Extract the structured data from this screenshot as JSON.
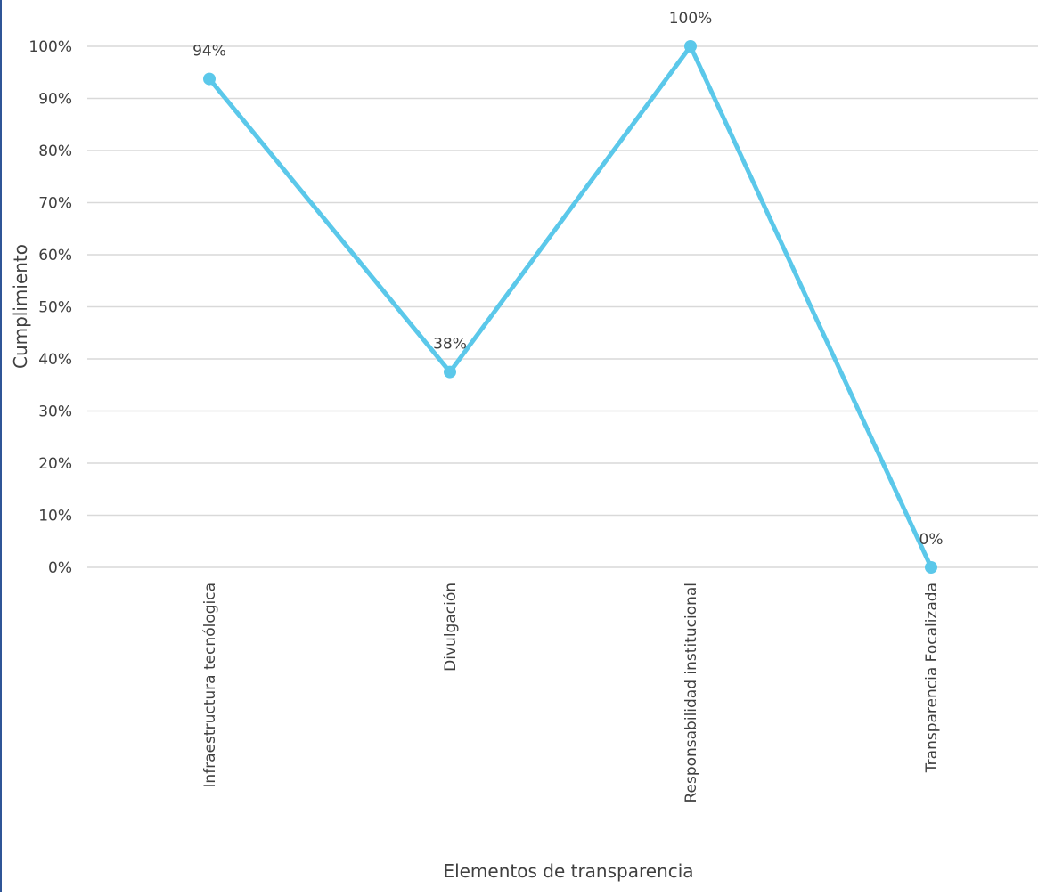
{
  "chart_data": {
    "type": "line",
    "title": "",
    "xlabel": "Elementos de transparencia",
    "ylabel": "Cumplimiento",
    "categories": [
      "Infraestructura tecnólogica",
      "Divulgación",
      "Responsabilidad institucional",
      "Transparencia Focalizada"
    ],
    "series": [
      {
        "values": [
          93.75,
          37.5,
          100,
          0
        ],
        "data_labels": [
          "94%",
          "38%",
          "100%",
          "0%"
        ],
        "color": "#5bc8ea"
      }
    ],
    "ylim": [
      0,
      100
    ],
    "yticks": [
      "0%",
      "10%",
      "20%",
      "30%",
      "40%",
      "50%",
      "60%",
      "70%",
      "80%",
      "90%",
      "100%"
    ],
    "grid": true,
    "legend": "none"
  }
}
